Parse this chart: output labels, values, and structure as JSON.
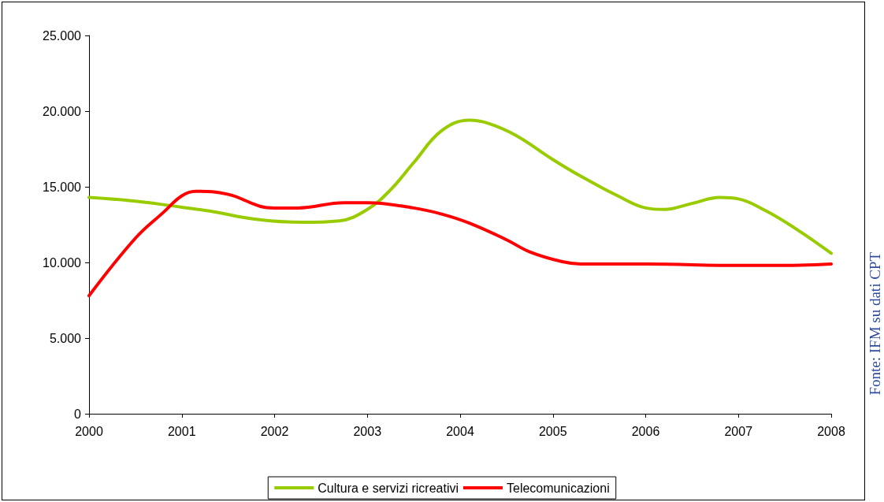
{
  "chart_data": {
    "type": "line",
    "marker": "none",
    "legend": "bottom",
    "xlim": [
      2000,
      2008
    ],
    "xticks": [
      2000,
      2001,
      2002,
      2003,
      2004,
      2005,
      2006,
      2007,
      2008
    ],
    "ylim": [
      0,
      25000
    ],
    "yticks": [
      0,
      {
        "value": 5000,
        "label": "5.000"
      },
      {
        "value": 10000,
        "label": "10.000"
      },
      {
        "value": 15000,
        "label": "15.000"
      },
      {
        "value": 20000,
        "label": "20.000"
      },
      {
        "value": 25000,
        "label": "25.000"
      }
    ],
    "series": [
      {
        "name": "Cultura e servizi ricreativi",
        "color": "#99cc00",
        "x": [
          2000,
          2000.5,
          2001,
          2001.3,
          2001.8,
          2002.3,
          2002.7,
          2003,
          2003.25,
          2003.5,
          2003.8,
          2004.1,
          2004.3,
          2004.6,
          2005,
          2005.3,
          2005.7,
          2006,
          2006.2,
          2006.5,
          2006.8,
          2007,
          2007.3,
          2007.6,
          2008
        ],
        "values": [
          14300,
          14050,
          13650,
          13400,
          12850,
          12650,
          12750,
          13500,
          14800,
          16600,
          18700,
          19400,
          19200,
          18400,
          16800,
          15700,
          14400,
          13600,
          13500,
          13900,
          14300,
          14200,
          13400,
          12300,
          10600
        ]
      },
      {
        "name": "Telecomunicazioni",
        "color": "#ff0000",
        "x": [
          2000,
          2000.5,
          2000.8,
          2001,
          2001.15,
          2001.5,
          2001.85,
          2002,
          2002.25,
          2002.75,
          2003,
          2003.5,
          2003.8,
          2004.1,
          2004.5,
          2004.75,
          2005.1,
          2005.3,
          2006,
          2007,
          2007.5,
          2008
        ],
        "values": [
          7800,
          11600,
          13300,
          14400,
          14700,
          14500,
          13700,
          13600,
          13600,
          13950,
          13950,
          13600,
          13200,
          12600,
          11500,
          10700,
          10050,
          9900,
          9900,
          9800,
          9800,
          9900
        ]
      }
    ],
    "annotations": [
      "Fonte: IFM su dati CPT"
    ]
  }
}
